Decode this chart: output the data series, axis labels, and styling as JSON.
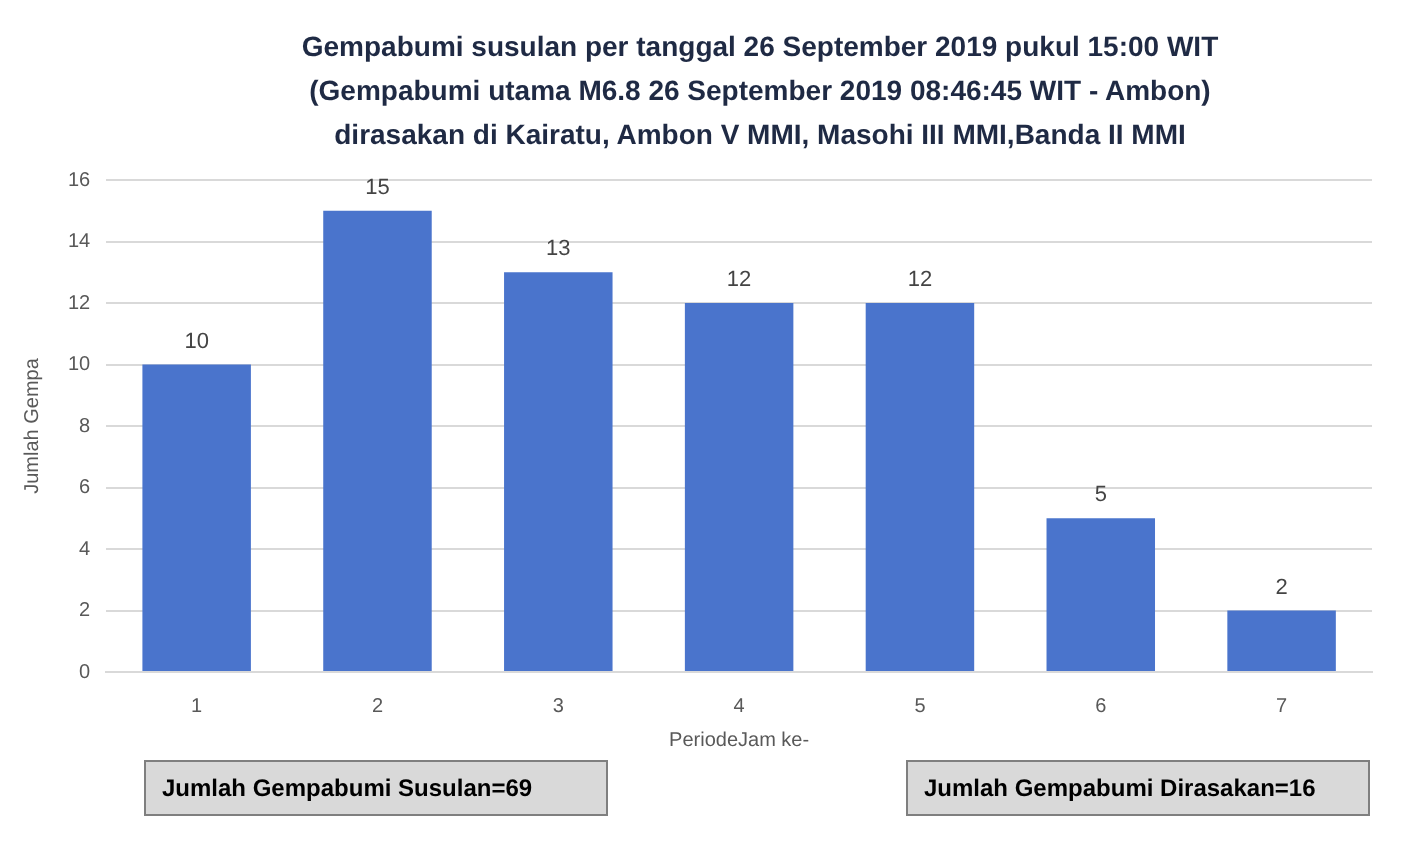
{
  "chart_data": {
    "type": "bar",
    "title": "Gempabumi susulan per tanggal 26 September 2019 pukul 15:00 WIT\n(Gempabumi utama M6.8 26 September 2019 08:46:45 WIT - Ambon)\ndirasakan di Kairatu, Ambon V MMI, Masohi III MMI,Banda II MMI",
    "xlabel": "PeriodeJam ke-",
    "ylabel": "Jumlah Gempa",
    "categories": [
      "1",
      "2",
      "3",
      "4",
      "5",
      "6",
      "7"
    ],
    "values": [
      10,
      15,
      13,
      12,
      12,
      5,
      2
    ],
    "color": "#4a74cc",
    "ylim": [
      0,
      16
    ],
    "yticks": [
      0,
      2,
      4,
      6,
      8,
      10,
      12,
      14,
      16
    ],
    "grid": "y",
    "data_labels": true,
    "legend": false,
    "annotations": [
      "Jumlah Gempabumi Susulan=69",
      "Jumlah Gempabumi Dirasakan=16"
    ]
  }
}
